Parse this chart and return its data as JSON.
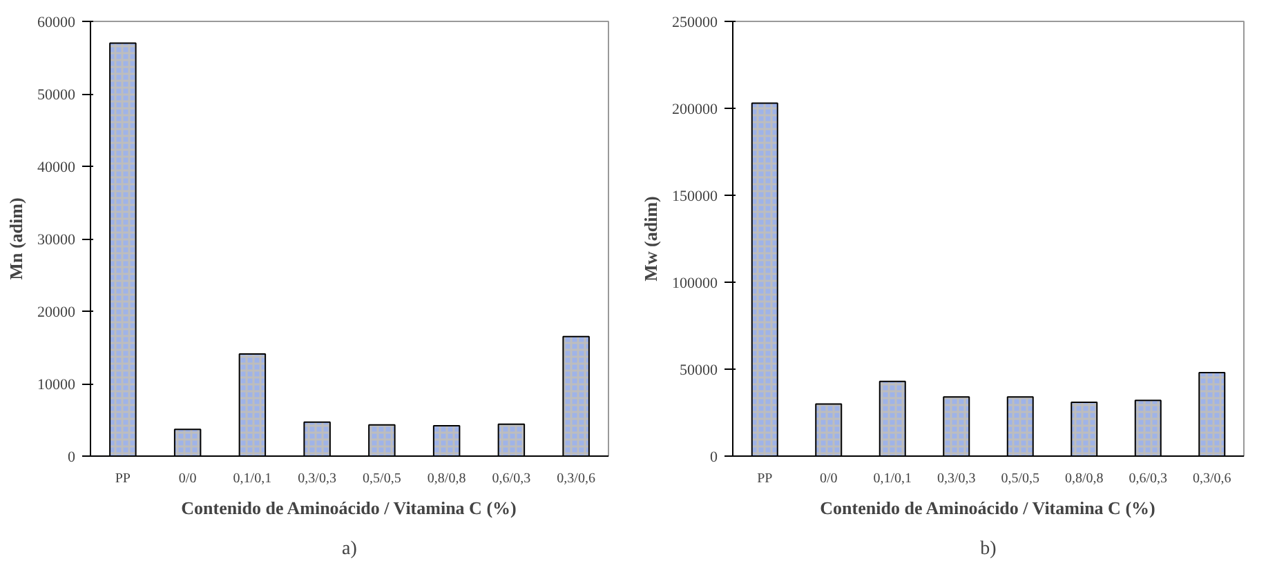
{
  "chart_data": [
    {
      "type": "bar",
      "categories": [
        "PP",
        "0/0",
        "0,1/0,1",
        "0,3/0,3",
        "0,5/0,5",
        "0,8/0,8",
        "0,6/0,3",
        "0,3/0,6"
      ],
      "values": [
        57000,
        3700,
        14100,
        4700,
        4300,
        4200,
        4400,
        16500
      ],
      "color": "#9fb3e8",
      "ylabel": "Mn (adim)",
      "xlabel": "Contenido de Aminoácido / Vitamina C (%)",
      "ylim": [
        0,
        60000
      ],
      "yticks": [
        0,
        10000,
        20000,
        30000,
        40000,
        50000,
        60000
      ],
      "grid": false,
      "annotations": [
        "a)"
      ]
    },
    {
      "type": "bar",
      "categories": [
        "PP",
        "0/0",
        "0,1/0,1",
        "0,3/0,3",
        "0,5/0,5",
        "0,8/0,8",
        "0,6/0,3",
        "0,3/0,6"
      ],
      "values": [
        203000,
        30000,
        43000,
        34000,
        34000,
        31000,
        32000,
        48000
      ],
      "color": "#9fb3e8",
      "ylabel": "Mw (adim)",
      "xlabel": "Contenido de Aminoácido / Vitamina C (%)",
      "ylim": [
        0,
        250000
      ],
      "yticks": [
        0,
        50000,
        100000,
        150000,
        200000,
        250000
      ],
      "grid": false,
      "annotations": [
        "b)"
      ]
    }
  ]
}
